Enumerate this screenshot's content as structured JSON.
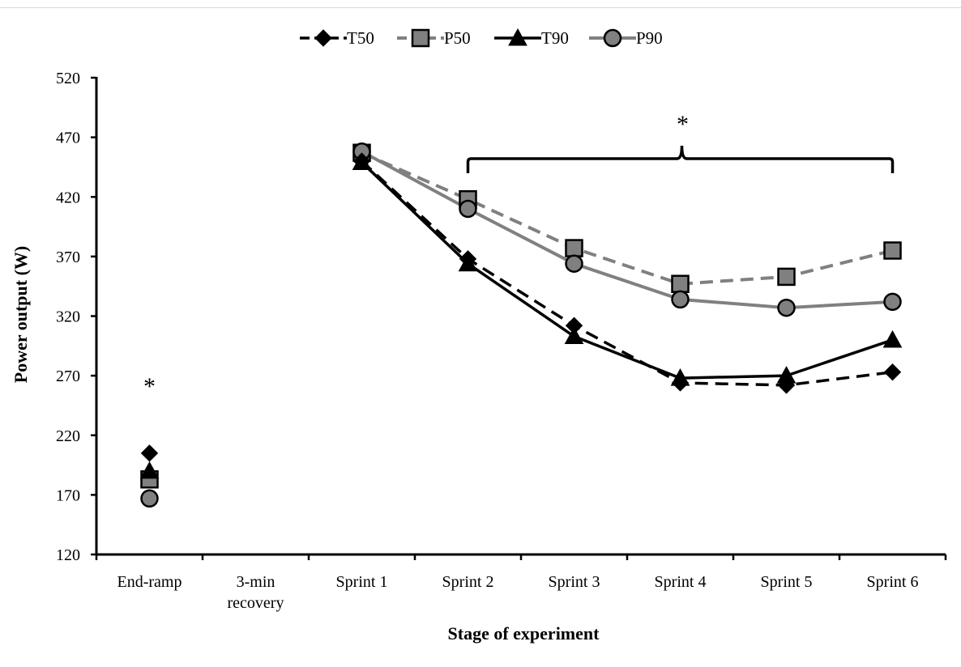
{
  "chart_data": {
    "type": "line",
    "xlabel": "Stage of experiment",
    "ylabel": "Power output (W)",
    "ylim": [
      120,
      520
    ],
    "yticks": [
      120,
      170,
      220,
      270,
      320,
      370,
      420,
      470,
      520
    ],
    "categories": [
      "End-ramp",
      "3-min\nrecovery",
      "Sprint 1",
      "Sprint 2",
      "Sprint 3",
      "Sprint 4",
      "Sprint 5",
      "Sprint 6"
    ],
    "legend_position": "top-center",
    "grid": false,
    "series": [
      {
        "name": "T50",
        "values": [
          205,
          null,
          450,
          368,
          312,
          264,
          262,
          273
        ],
        "color": "#000000",
        "dashed": true,
        "marker": "diamond",
        "connect_from": 2
      },
      {
        "name": "P50",
        "values": [
          183,
          null,
          457,
          418,
          377,
          347,
          353,
          375
        ],
        "color": "#808080",
        "dashed": true,
        "marker": "square",
        "connect_from": 2
      },
      {
        "name": "T90",
        "values": [
          190,
          null,
          449,
          364,
          303,
          268,
          270,
          300
        ],
        "color": "#000000",
        "dashed": false,
        "marker": "triangle",
        "connect_from": 2
      },
      {
        "name": "P90",
        "values": [
          167,
          null,
          458,
          410,
          364,
          334,
          327,
          332
        ],
        "color": "#808080",
        "dashed": false,
        "marker": "circle",
        "connect_from": 2
      }
    ],
    "annotations": [
      {
        "text": "*",
        "category_index": 0,
        "y": 268
      },
      {
        "text": "*",
        "bracket_from": 3,
        "bracket_to": 7
      }
    ]
  }
}
